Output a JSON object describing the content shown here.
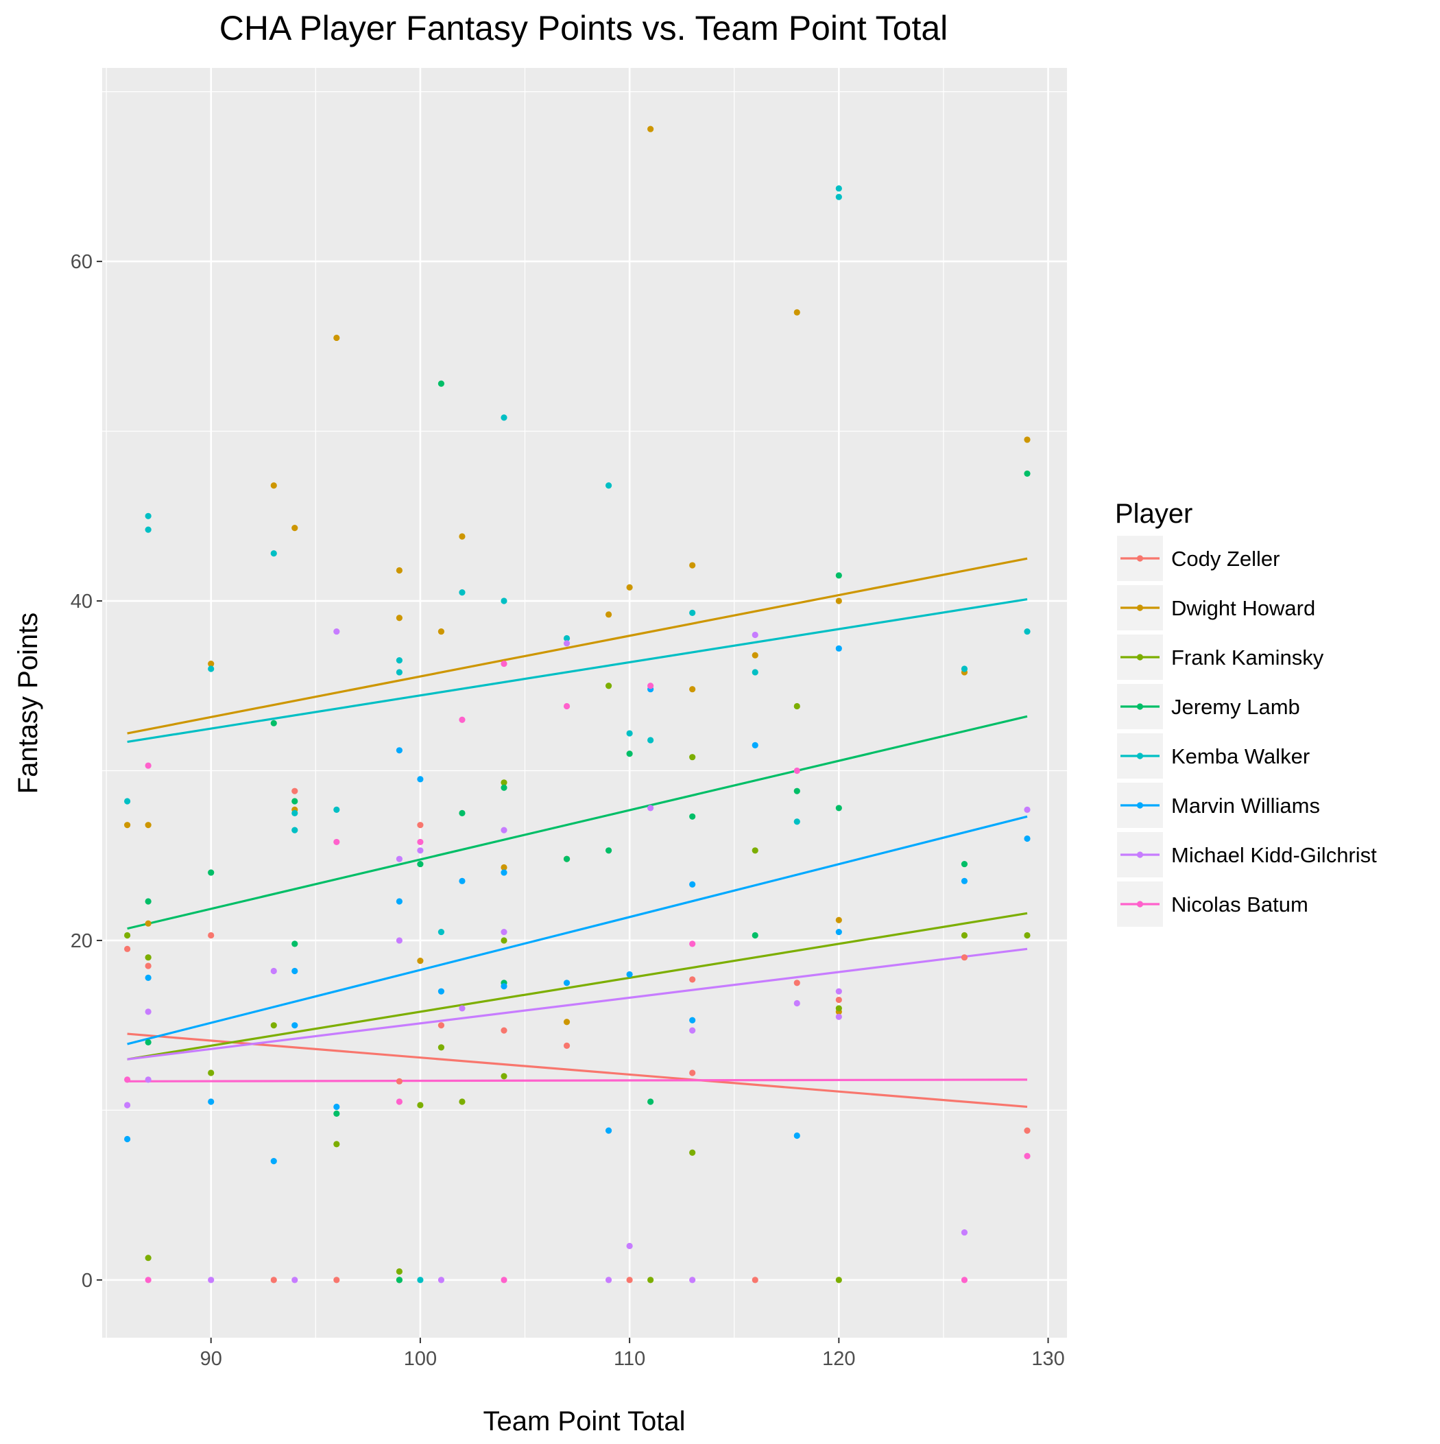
{
  "chart_data": {
    "type": "scatter",
    "title": "CHA Player Fantasy Points vs. Team Point Total",
    "xlabel": "Team Point Total",
    "ylabel": "Fantasy Points",
    "xlim": [
      84.8,
      130.9
    ],
    "ylim": [
      -3.4,
      71.4
    ],
    "x_ticks": [
      90,
      100,
      110,
      120,
      130
    ],
    "y_ticks": [
      0,
      20,
      40,
      60
    ],
    "grid": true,
    "legend": {
      "title": "Player",
      "position": "right"
    },
    "series": [
      {
        "name": "Cody Zeller",
        "color": "#F8766D",
        "fit": {
          "x": [
            86,
            129
          ],
          "y": [
            14.5,
            10.2
          ]
        },
        "points": [
          [
            86,
            19.5
          ],
          [
            87,
            18.5
          ],
          [
            90,
            20.3
          ],
          [
            93,
            0
          ],
          [
            94,
            28.8
          ],
          [
            96,
            0
          ],
          [
            99,
            11.7
          ],
          [
            100,
            26.8
          ],
          [
            101,
            15
          ],
          [
            104,
            14.7
          ],
          [
            107,
            13.8
          ],
          [
            110,
            0
          ],
          [
            113,
            17.7
          ],
          [
            113,
            12.2
          ],
          [
            116,
            0
          ],
          [
            118,
            17.5
          ],
          [
            120,
            16.5
          ],
          [
            126,
            19
          ],
          [
            129,
            8.8
          ]
        ]
      },
      {
        "name": "Dwight Howard",
        "color": "#CD9600",
        "fit": {
          "x": [
            86,
            129
          ],
          "y": [
            32.2,
            42.5
          ]
        },
        "points": [
          [
            86,
            26.8
          ],
          [
            87,
            26.8
          ],
          [
            87,
            21
          ],
          [
            90,
            36.3
          ],
          [
            93,
            46.8
          ],
          [
            94,
            44.3
          ],
          [
            94,
            27.7
          ],
          [
            96,
            55.5
          ],
          [
            99,
            41.8
          ],
          [
            99,
            39
          ],
          [
            100,
            18.8
          ],
          [
            101,
            38.2
          ],
          [
            102,
            43.8
          ],
          [
            104,
            24.3
          ],
          [
            107,
            24.8
          ],
          [
            107,
            15.2
          ],
          [
            109,
            39.2
          ],
          [
            110,
            40.8
          ],
          [
            111,
            67.8
          ],
          [
            113,
            42.1
          ],
          [
            113,
            34.8
          ],
          [
            116,
            36.8
          ],
          [
            118,
            57
          ],
          [
            120,
            40
          ],
          [
            120,
            21.2
          ],
          [
            120,
            15.8
          ],
          [
            126,
            35.8
          ],
          [
            129,
            49.5
          ]
        ]
      },
      {
        "name": "Frank Kaminsky",
        "color": "#7CAE00",
        "fit": {
          "x": [
            86,
            129
          ],
          "y": [
            13,
            21.6
          ]
        },
        "points": [
          [
            86,
            20.3
          ],
          [
            87,
            19
          ],
          [
            87,
            1.3
          ],
          [
            90,
            12.2
          ],
          [
            93,
            15
          ],
          [
            96,
            8
          ],
          [
            99,
            0.5
          ],
          [
            99,
            0
          ],
          [
            100,
            10.3
          ],
          [
            101,
            13.7
          ],
          [
            102,
            10.5
          ],
          [
            104,
            29.3
          ],
          [
            104,
            20
          ],
          [
            104,
            12
          ],
          [
            109,
            35
          ],
          [
            111,
            0
          ],
          [
            113,
            30.8
          ],
          [
            113,
            7.5
          ],
          [
            116,
            25.3
          ],
          [
            118,
            33.8
          ],
          [
            120,
            16
          ],
          [
            120,
            0
          ],
          [
            126,
            20.3
          ],
          [
            129,
            20.3
          ]
        ]
      },
      {
        "name": "Jeremy Lamb",
        "color": "#00BE67",
        "fit": {
          "x": [
            86,
            129
          ],
          "y": [
            20.7,
            33.2
          ]
        },
        "points": [
          [
            87,
            22.3
          ],
          [
            87,
            14
          ],
          [
            90,
            24
          ],
          [
            93,
            32.8
          ],
          [
            94,
            28.2
          ],
          [
            94,
            19.8
          ],
          [
            96,
            9.8
          ],
          [
            99,
            0
          ],
          [
            100,
            24.5
          ],
          [
            101,
            52.8
          ],
          [
            102,
            27.5
          ],
          [
            104,
            29
          ],
          [
            104,
            17.5
          ],
          [
            107,
            24.8
          ],
          [
            109,
            25.3
          ],
          [
            110,
            31
          ],
          [
            111,
            10.5
          ],
          [
            113,
            27.3
          ],
          [
            116,
            20.3
          ],
          [
            118,
            28.8
          ],
          [
            120,
            41.5
          ],
          [
            120,
            27.8
          ],
          [
            126,
            24.5
          ],
          [
            129,
            47.5
          ]
        ]
      },
      {
        "name": "Kemba Walker",
        "color": "#00BFC4",
        "fit": {
          "x": [
            86,
            129
          ],
          "y": [
            31.7,
            40.1
          ]
        },
        "points": [
          [
            86,
            28.2
          ],
          [
            87,
            45
          ],
          [
            87,
            44.2
          ],
          [
            90,
            36
          ],
          [
            93,
            42.8
          ],
          [
            94,
            27.5
          ],
          [
            94,
            26.5
          ],
          [
            96,
            27.7
          ],
          [
            99,
            36.5
          ],
          [
            99,
            35.8
          ],
          [
            100,
            0
          ],
          [
            101,
            20.5
          ],
          [
            102,
            40.5
          ],
          [
            104,
            50.8
          ],
          [
            104,
            40
          ],
          [
            107,
            37.8
          ],
          [
            109,
            46.8
          ],
          [
            110,
            32.2
          ],
          [
            111,
            31.8
          ],
          [
            113,
            39.3
          ],
          [
            116,
            35.8
          ],
          [
            118,
            27
          ],
          [
            120,
            64.3
          ],
          [
            120,
            63.8
          ],
          [
            126,
            36
          ],
          [
            129,
            38.2
          ]
        ]
      },
      {
        "name": "Marvin Williams",
        "color": "#00A9FF",
        "fit": {
          "x": [
            86,
            129
          ],
          "y": [
            13.9,
            27.3
          ]
        },
        "points": [
          [
            86,
            8.3
          ],
          [
            87,
            17.8
          ],
          [
            90,
            10.5
          ],
          [
            93,
            7
          ],
          [
            94,
            18.2
          ],
          [
            94,
            15
          ],
          [
            96,
            10.2
          ],
          [
            99,
            31.2
          ],
          [
            99,
            22.3
          ],
          [
            100,
            29.5
          ],
          [
            101,
            17
          ],
          [
            102,
            23.5
          ],
          [
            104,
            24
          ],
          [
            104,
            17.3
          ],
          [
            107,
            17.5
          ],
          [
            109,
            8.8
          ],
          [
            110,
            18
          ],
          [
            111,
            34.8
          ],
          [
            113,
            23.3
          ],
          [
            113,
            15.3
          ],
          [
            116,
            31.5
          ],
          [
            118,
            8.5
          ],
          [
            120,
            37.2
          ],
          [
            120,
            20.5
          ],
          [
            126,
            23.5
          ],
          [
            129,
            26
          ]
        ]
      },
      {
        "name": "Michael Kidd-Gilchrist",
        "color": "#C77CFF",
        "fit": {
          "x": [
            86,
            129
          ],
          "y": [
            13,
            19.5
          ]
        },
        "points": [
          [
            86,
            10.3
          ],
          [
            87,
            15.8
          ],
          [
            87,
            11.8
          ],
          [
            90,
            0
          ],
          [
            93,
            18.2
          ],
          [
            94,
            0
          ],
          [
            96,
            38.2
          ],
          [
            99,
            24.8
          ],
          [
            99,
            20
          ],
          [
            100,
            25.3
          ],
          [
            101,
            0
          ],
          [
            102,
            16
          ],
          [
            104,
            26.5
          ],
          [
            104,
            20.5
          ],
          [
            107,
            37.5
          ],
          [
            109,
            0
          ],
          [
            110,
            2
          ],
          [
            111,
            27.8
          ],
          [
            113,
            14.7
          ],
          [
            113,
            0
          ],
          [
            116,
            38
          ],
          [
            118,
            16.3
          ],
          [
            120,
            17
          ],
          [
            120,
            15.5
          ],
          [
            126,
            2.8
          ],
          [
            129,
            27.7
          ]
        ]
      },
      {
        "name": "Nicolas Batum",
        "color": "#FF61CC",
        "fit": {
          "x": [
            86,
            129
          ],
          "y": [
            11.7,
            11.8
          ]
        },
        "points": [
          [
            86,
            11.8
          ],
          [
            87,
            30.3
          ],
          [
            87,
            0
          ],
          [
            96,
            25.8
          ],
          [
            99,
            10.5
          ],
          [
            100,
            25.8
          ],
          [
            102,
            33
          ],
          [
            104,
            36.3
          ],
          [
            104,
            0
          ],
          [
            107,
            33.8
          ],
          [
            111,
            35
          ],
          [
            113,
            19.8
          ],
          [
            118,
            30
          ],
          [
            126,
            0
          ],
          [
            129,
            7.3
          ]
        ]
      }
    ]
  }
}
